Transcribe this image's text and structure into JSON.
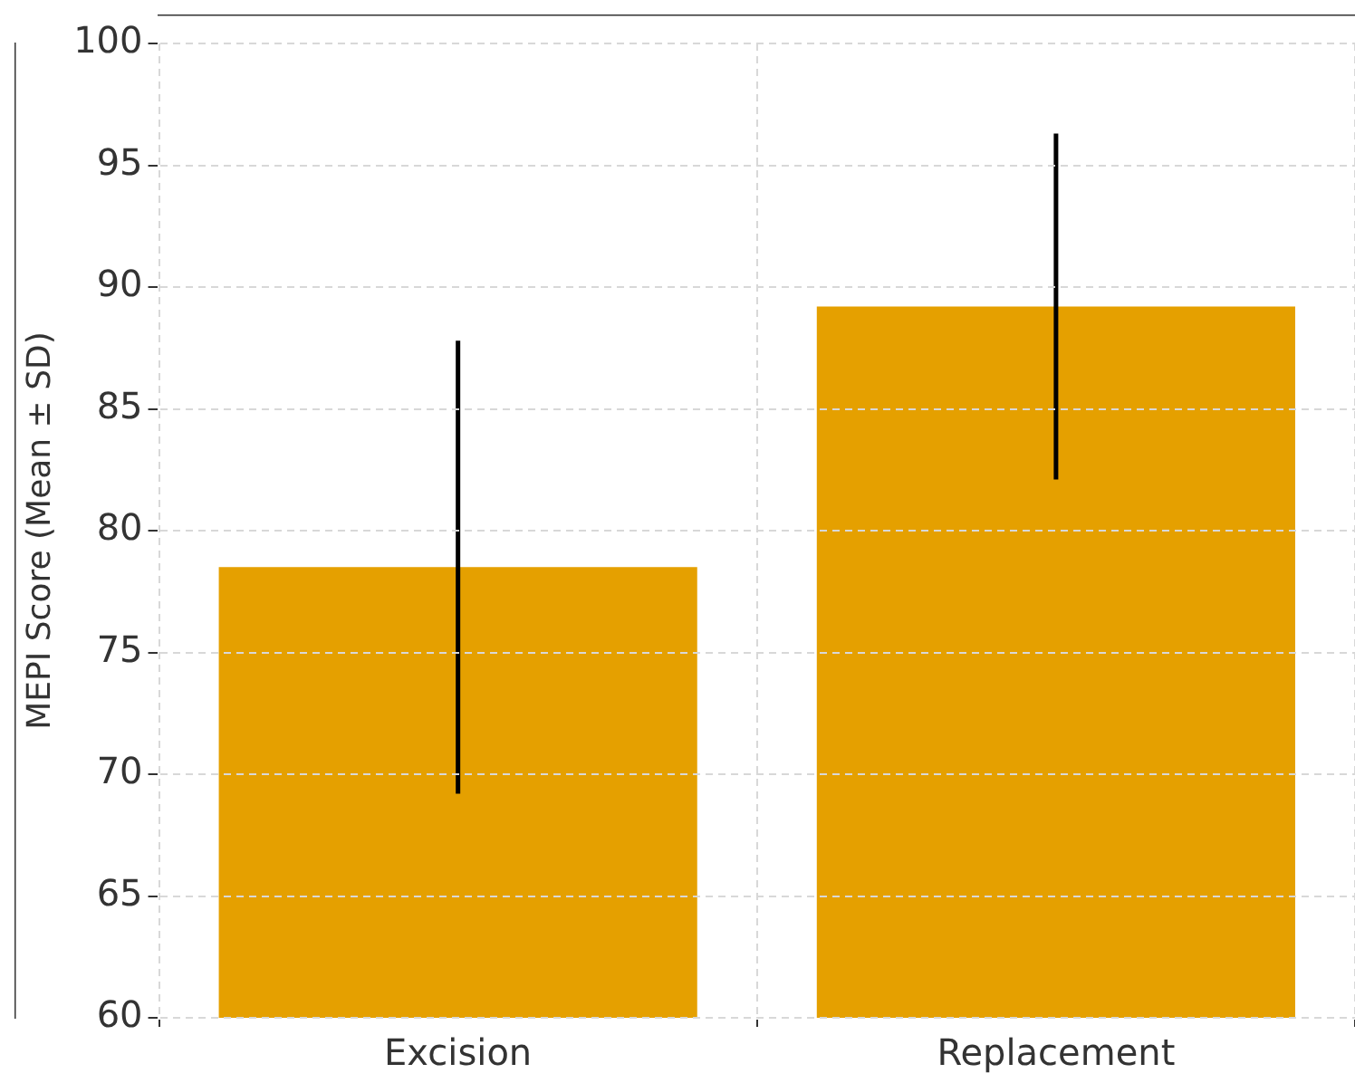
{
  "chart_data": {
    "type": "bar",
    "ylabel": "MEPI Score (Mean ± SD)",
    "categories": [
      "Excision",
      "Replacement"
    ],
    "values": [
      78.5,
      89.2
    ],
    "errors": [
      9.3,
      7.1
    ],
    "color": "#e5a000",
    "ylim": [
      60,
      100
    ],
    "yticks": [
      60,
      65,
      70,
      75,
      80,
      85,
      90,
      95,
      100
    ],
    "grid": true
  }
}
